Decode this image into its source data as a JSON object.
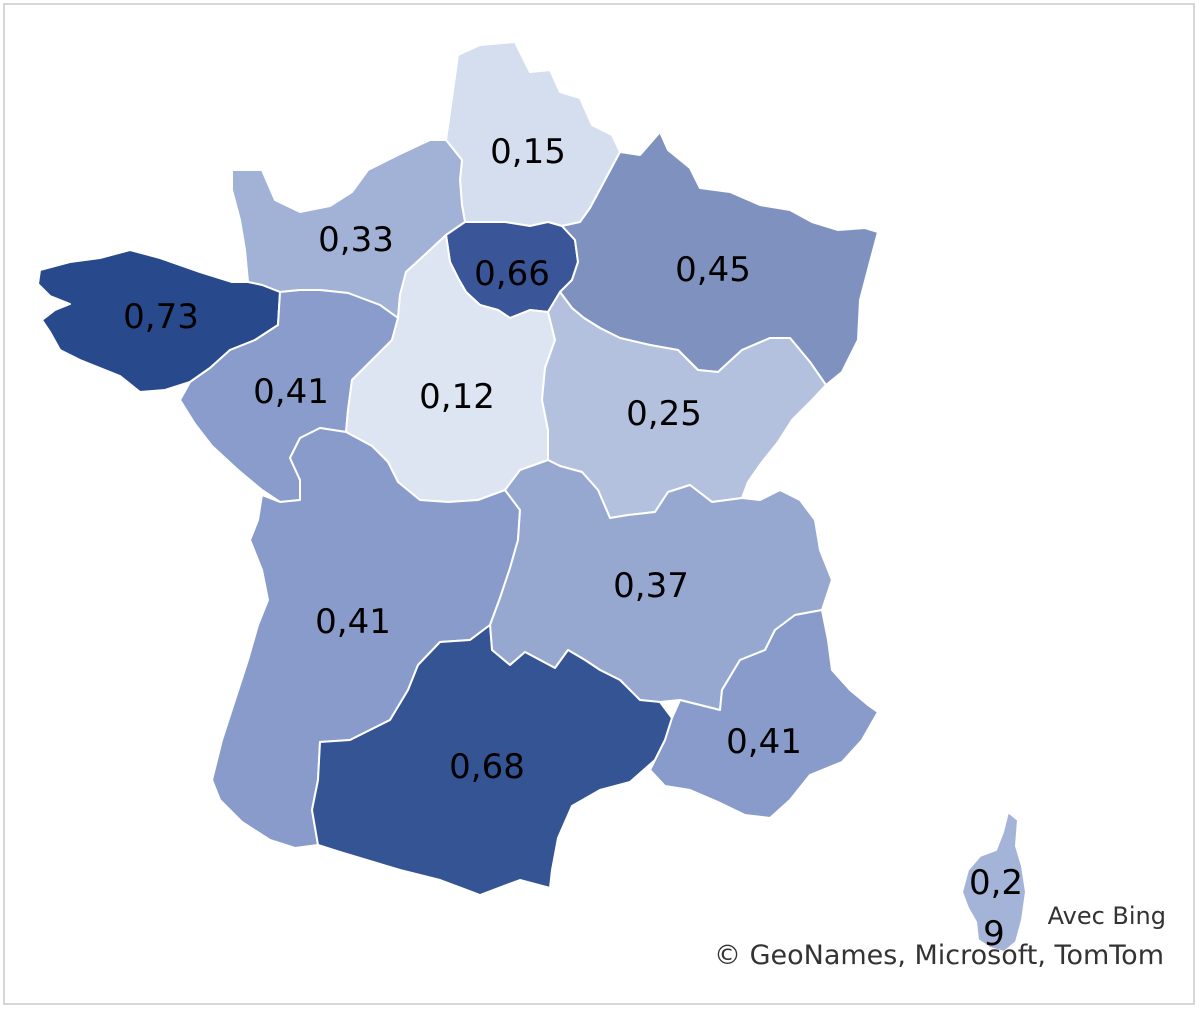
{
  "map": {
    "credits": {
      "line1": "Avec Bing",
      "line2": "© GeoNames, Microsoft, TomTom"
    },
    "regions": [
      {
        "id": "hauts-de-france",
        "label": "0,15",
        "color": "#d5deef"
      },
      {
        "id": "normandie",
        "label": "0,33",
        "color": "#a1b2d6"
      },
      {
        "id": "ile-de-france",
        "label": "0,66",
        "color": "#3a5698"
      },
      {
        "id": "grand-est",
        "label": "0,45",
        "color": "#7f91bf"
      },
      {
        "id": "bretagne",
        "label": "0,73",
        "color": "#284a8c"
      },
      {
        "id": "pays-de-la-loire",
        "label": "0,41",
        "color": "#8a9ccb"
      },
      {
        "id": "centre-val-de-loire",
        "label": "0,12",
        "color": "#dde4f2"
      },
      {
        "id": "bourgogne-franche-comte",
        "label": "0,25",
        "color": "#b3c1df"
      },
      {
        "id": "nouvelle-aquitaine",
        "label": "0,41",
        "color": "#889bca"
      },
      {
        "id": "auvergne-rhone-alpes",
        "label": "0,37",
        "color": "#97a8d0"
      },
      {
        "id": "occitanie",
        "label": "0,68",
        "color": "#355494"
      },
      {
        "id": "provence-alpes-cote-dazur",
        "label": "0,41",
        "color": "#889bca"
      },
      {
        "id": "corse",
        "label_line1": "0,2",
        "label_line2": "9",
        "color": "#a4b4d8"
      }
    ]
  }
}
